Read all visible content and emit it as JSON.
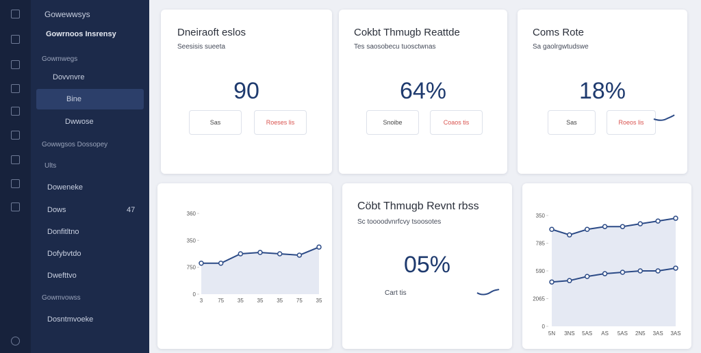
{
  "sidebar": {
    "header": "Gowewwsys",
    "brand": "Gowrnoos Insrensy",
    "section": "Gowmwegs",
    "items": [
      {
        "label": "Dovvnvre"
      },
      {
        "label": "Bine"
      },
      {
        "label": "Dwwose"
      }
    ],
    "groups": [
      "Gowwgsos Dossopey",
      "Ults"
    ],
    "links": [
      {
        "label": "Doweneke"
      },
      {
        "label": "Dows",
        "badge": "47"
      },
      {
        "label": "Donfitltno"
      },
      {
        "label": "Dofybvtdo"
      },
      {
        "label": "Dwefttvo"
      }
    ],
    "footer_section": "Gowmvowss",
    "footer_link": "Dosntmvoeke"
  },
  "cards": [
    {
      "title": "Dneiraoft eslos",
      "subtitle": "Seesisis sueeta",
      "value": "90",
      "buttons": [
        "Sas",
        "Roeses lis"
      ]
    },
    {
      "title": "Cokbt Thmugb Reattde",
      "subtitle": "Tes saosobecu tuosctwnas",
      "value": "64%",
      "buttons": [
        "Snoibe",
        "Coaos tis"
      ]
    },
    {
      "title": "Coms Rote",
      "subtitle": "Sa gaolrgwtudswe",
      "value": "18%",
      "buttons": [
        "Sas",
        "Roeos lis"
      ]
    }
  ],
  "mid_card": {
    "title": "Cöbt Thmugb Revnt rbss",
    "subtitle": "Sc toooodvnrfcvy tsoosotes",
    "value": "05%",
    "caption": "Cart tis"
  },
  "charts": [
    {
      "type": "line",
      "categories": [
        "3",
        "75",
        "35",
        "35",
        "35",
        "75",
        "35"
      ],
      "ylim": [
        0,
        3
      ],
      "yticks": [
        0,
        {
          "value": 1,
          "label": "750"
        },
        {
          "value": 2,
          "label": "350"
        },
        {
          "value": 3,
          "label": "360"
        }
      ],
      "series": [
        {
          "color": "#2b4a86",
          "values": [
            1.15,
            1.15,
            1.5,
            1.55,
            1.5,
            1.45,
            1.75
          ]
        }
      ]
    },
    {
      "type": "line",
      "categories": [
        "5N",
        "3NS",
        "5AS",
        "AS",
        "5AS",
        "2N5",
        "3AS",
        "3AS"
      ],
      "ylim": [
        0,
        4
      ],
      "yticks": [
        0,
        {
          "value": 1,
          "label": "2065"
        },
        {
          "value": 2,
          "label": "590"
        },
        {
          "value": 3,
          "label": "785"
        },
        {
          "value": 4,
          "label": "350"
        }
      ],
      "series": [
        {
          "color": "#2b4a86",
          "values": [
            3.5,
            3.3,
            3.5,
            3.6,
            3.6,
            3.7,
            3.8,
            3.9
          ]
        },
        {
          "color": "#2b4a86",
          "values": [
            1.6,
            1.65,
            1.8,
            1.9,
            1.95,
            2.0,
            2.0,
            2.1
          ]
        }
      ]
    }
  ]
}
